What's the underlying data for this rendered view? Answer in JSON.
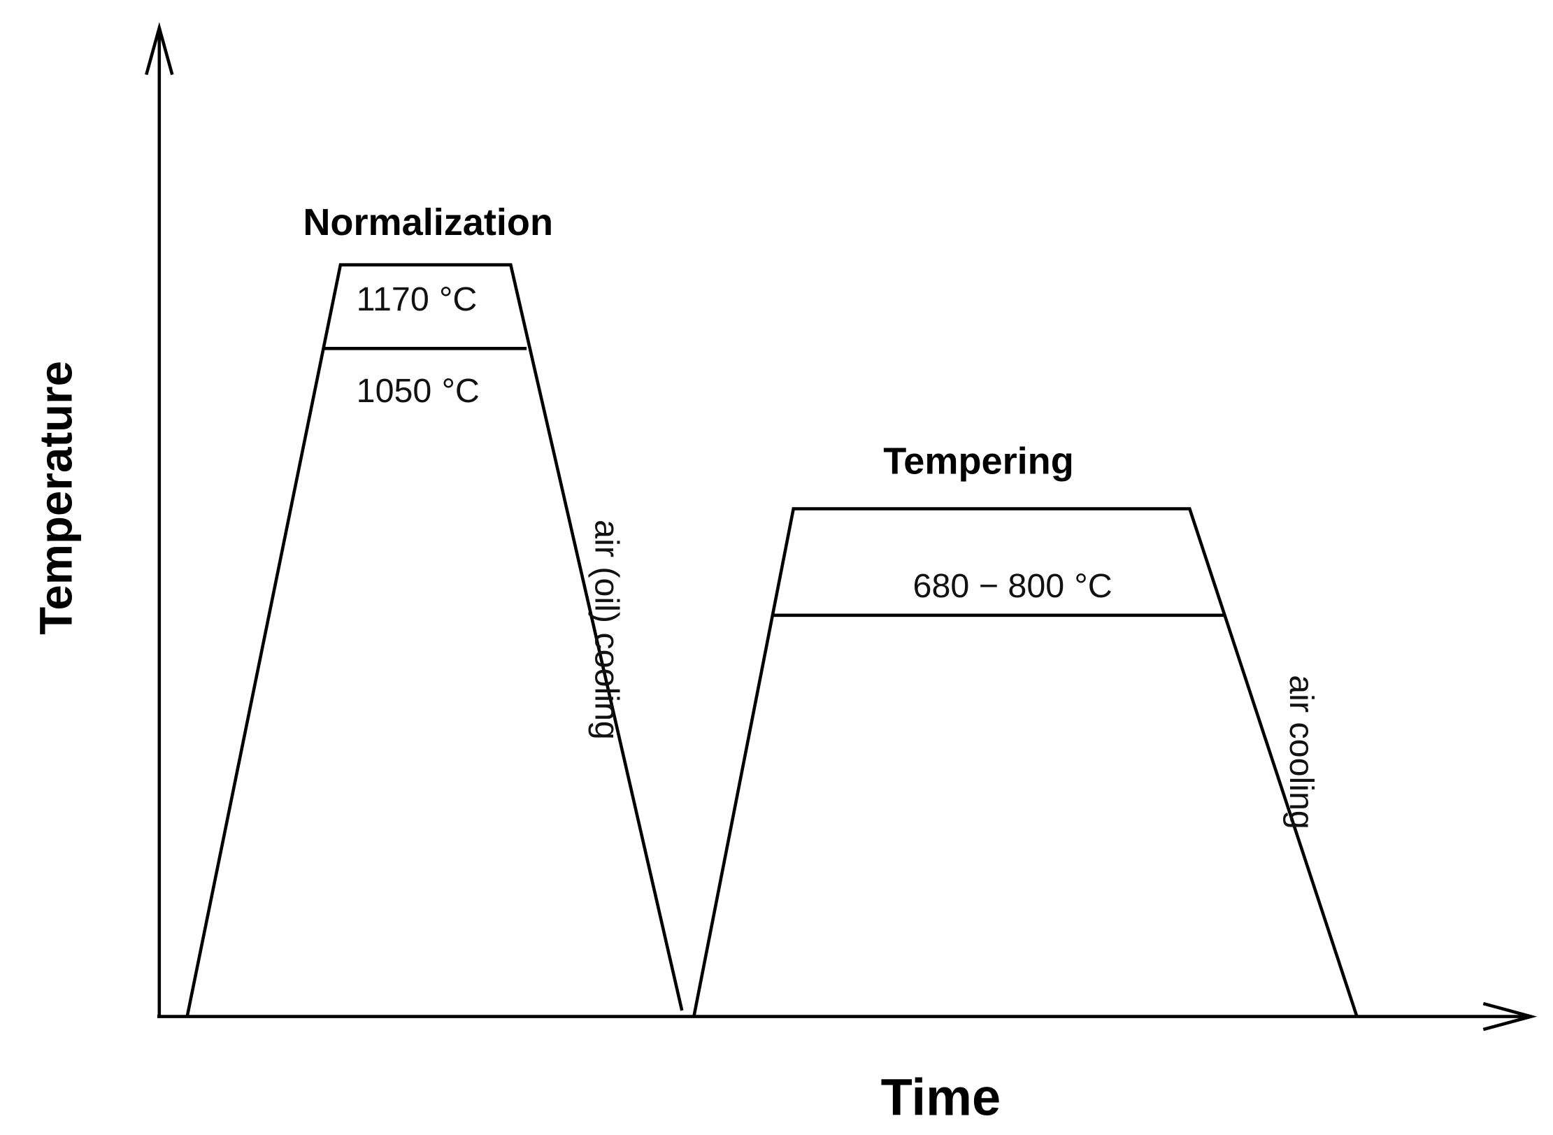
{
  "axes": {
    "y_label": "Temperature",
    "x_label": "Time"
  },
  "stages": [
    {
      "title": "Normalization",
      "upper_temp": "1170",
      "lower_temp": "1050",
      "unit": "°C",
      "cooling": "air (oil) cooling"
    },
    {
      "title": "Tempering",
      "temp_range": "680 − 800",
      "unit": "°C",
      "cooling": "air cooling"
    }
  ],
  "colors": {
    "stroke": "#000000",
    "background": "#ffffff"
  }
}
